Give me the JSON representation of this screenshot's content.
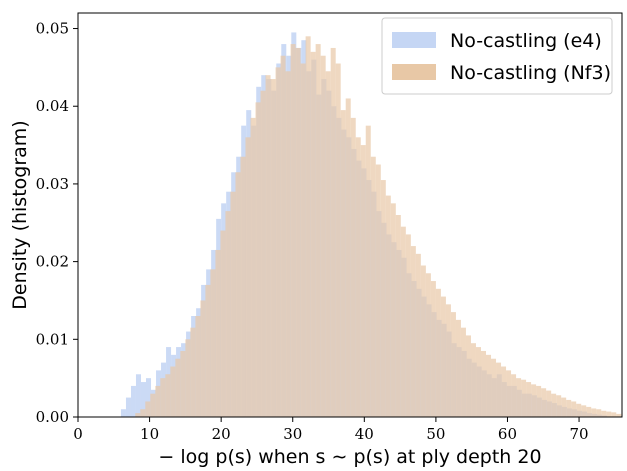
{
  "chart_data": {
    "type": "histogram",
    "xlabel": "− log p(s) when s ∼ p(s) at ply depth 20",
    "ylabel": "Density (histogram)",
    "xlim": [
      0,
      76
    ],
    "ylim": [
      0,
      0.052
    ],
    "xticks": [
      0,
      10,
      20,
      30,
      40,
      50,
      60,
      70
    ],
    "yticks": [
      0.0,
      0.01,
      0.02,
      0.03,
      0.04,
      0.05
    ],
    "ytick_labels": [
      "0.00",
      "0.01",
      "0.02",
      "0.03",
      "0.04",
      "0.05"
    ],
    "grid": false,
    "legend_position": "top-right",
    "series": [
      {
        "name": "No-castling (e4)",
        "color": "#c5d6f4",
        "bin_start": 6,
        "bin_width": 0.7,
        "values": [
          0.001,
          0.0025,
          0.004,
          0.0055,
          0.0045,
          0.005,
          0.0035,
          0.006,
          0.007,
          0.009,
          0.008,
          0.009,
          0.0095,
          0.011,
          0.013,
          0.014,
          0.017,
          0.019,
          0.0215,
          0.0255,
          0.0275,
          0.029,
          0.0315,
          0.0335,
          0.0375,
          0.0395,
          0.0375,
          0.0425,
          0.044,
          0.0435,
          0.042,
          0.0455,
          0.048,
          0.0465,
          0.0495,
          0.0475,
          0.0485,
          0.0445,
          0.046,
          0.0415,
          0.0435,
          0.042,
          0.04,
          0.0385,
          0.037,
          0.036,
          0.0345,
          0.033,
          0.032,
          0.0305,
          0.029,
          0.0265,
          0.025,
          0.0235,
          0.0225,
          0.0215,
          0.0205,
          0.0185,
          0.0175,
          0.0165,
          0.0155,
          0.0145,
          0.0135,
          0.0125,
          0.012,
          0.011,
          0.0095,
          0.009,
          0.0085,
          0.0075,
          0.007,
          0.0065,
          0.006,
          0.0055,
          0.005,
          0.0055,
          0.0045,
          0.004,
          0.004,
          0.0035,
          0.003,
          0.003,
          0.0028,
          0.0025,
          0.0022,
          0.002,
          0.0018,
          0.0015,
          0.0013,
          0.0011,
          0.001,
          0.0008,
          0.0007,
          0.0005,
          0.0004,
          0.0003,
          0.0002
        ]
      },
      {
        "name": "No-castling (Nf3)",
        "color": "#e8c8a6",
        "bin_start": 8,
        "bin_width": 0.7,
        "values": [
          0.0005,
          0.001,
          0.002,
          0.003,
          0.004,
          0.005,
          0.0055,
          0.0065,
          0.0075,
          0.0085,
          0.01,
          0.0115,
          0.013,
          0.015,
          0.017,
          0.019,
          0.0215,
          0.024,
          0.0265,
          0.029,
          0.0315,
          0.0335,
          0.036,
          0.0385,
          0.0405,
          0.042,
          0.044,
          0.0435,
          0.045,
          0.0465,
          0.0445,
          0.048,
          0.0475,
          0.0455,
          0.049,
          0.047,
          0.048,
          0.0465,
          0.0445,
          0.0475,
          0.0455,
          0.0395,
          0.041,
          0.0385,
          0.036,
          0.035,
          0.0375,
          0.0335,
          0.0325,
          0.0305,
          0.0285,
          0.0275,
          0.026,
          0.0245,
          0.0235,
          0.022,
          0.021,
          0.0195,
          0.0185,
          0.0175,
          0.0165,
          0.0155,
          0.0145,
          0.0135,
          0.0125,
          0.0115,
          0.0105,
          0.0095,
          0.009,
          0.0085,
          0.008,
          0.0075,
          0.007,
          0.0065,
          0.006,
          0.0055,
          0.005,
          0.0048,
          0.0045,
          0.0042,
          0.004,
          0.0037,
          0.0034,
          0.003,
          0.0028,
          0.0025,
          0.0022,
          0.002,
          0.0017,
          0.0015,
          0.0013,
          0.0011,
          0.001,
          0.0008,
          0.0007,
          0.0006,
          0.0004
        ]
      }
    ]
  }
}
